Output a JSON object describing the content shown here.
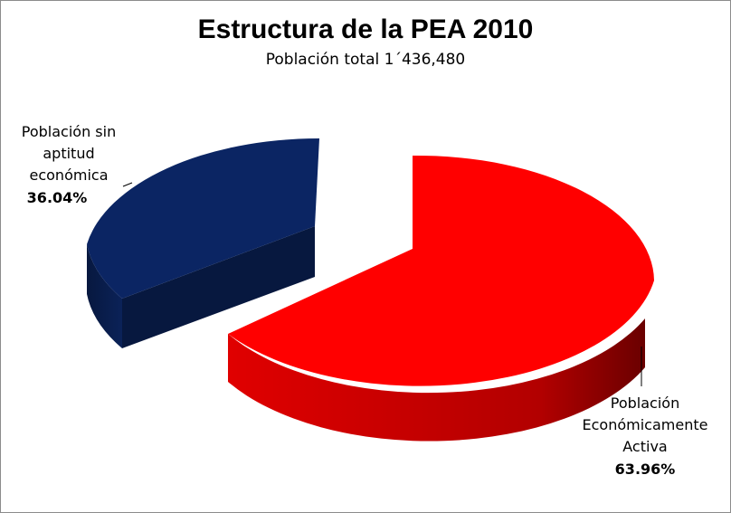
{
  "chart_data": {
    "type": "pie",
    "title": "Estructura de la PEA 2010",
    "subtitle": "Población total 1´436,480",
    "slices": [
      {
        "label_lines": [
          "Población",
          "Económicamente",
          "Activa"
        ],
        "percent_text": "63.96%",
        "value": 63.96,
        "color": "#ff0000",
        "side_color": "#b00000"
      },
      {
        "label_lines": [
          "Población sin",
          "aptitud",
          "económica"
        ],
        "percent_text": "36.04%",
        "value": 36.04,
        "color": "#0b2563",
        "side_color": "#061640"
      }
    ]
  }
}
